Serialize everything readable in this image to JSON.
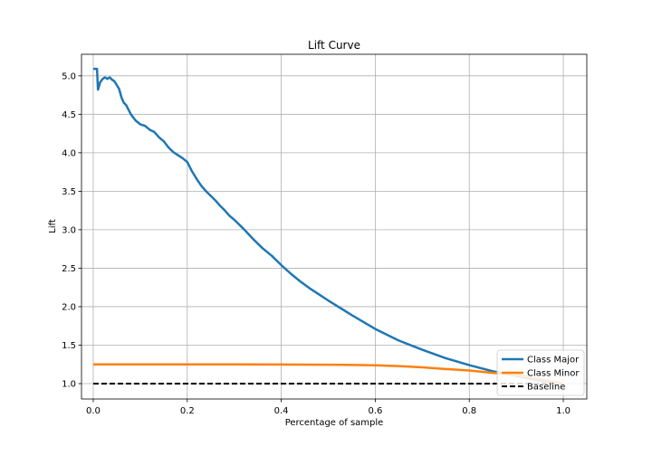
{
  "chart_data": {
    "type": "line",
    "title": "Lift Curve",
    "xlabel": "Percentage of sample",
    "ylabel": "Lift",
    "xlim": [
      -0.025,
      1.05
    ],
    "ylim": [
      0.8,
      5.28
    ],
    "xticks": [
      0.0,
      0.2,
      0.4,
      0.6,
      0.8,
      1.0
    ],
    "xtick_labels": [
      "0.0",
      "0.2",
      "0.4",
      "0.6",
      "0.8",
      "1.0"
    ],
    "yticks": [
      1.0,
      1.5,
      2.0,
      2.5,
      3.0,
      3.5,
      4.0,
      4.5,
      5.0
    ],
    "ytick_labels": [
      "1.0",
      "1.5",
      "2.0",
      "2.5",
      "3.0",
      "3.5",
      "4.0",
      "4.5",
      "5.0"
    ],
    "grid": true,
    "legend_position": "lower-right",
    "series": [
      {
        "name": "Class Major",
        "color": "#1f77b4",
        "style": "solid",
        "x": [
          0.0,
          0.008,
          0.01,
          0.015,
          0.02,
          0.025,
          0.03,
          0.035,
          0.04,
          0.045,
          0.05,
          0.055,
          0.06,
          0.065,
          0.07,
          0.08,
          0.09,
          0.1,
          0.11,
          0.12,
          0.13,
          0.14,
          0.15,
          0.16,
          0.17,
          0.18,
          0.19,
          0.2,
          0.21,
          0.22,
          0.23,
          0.24,
          0.25,
          0.26,
          0.27,
          0.28,
          0.29,
          0.3,
          0.32,
          0.34,
          0.36,
          0.38,
          0.4,
          0.42,
          0.44,
          0.46,
          0.48,
          0.5,
          0.55,
          0.6,
          0.65,
          0.7,
          0.75,
          0.8,
          0.85,
          0.9,
          0.95,
          1.0
        ],
        "y": [
          5.09,
          5.09,
          4.82,
          4.92,
          4.96,
          4.98,
          4.96,
          4.98,
          4.95,
          4.93,
          4.88,
          4.83,
          4.72,
          4.65,
          4.62,
          4.5,
          4.42,
          4.37,
          4.35,
          4.3,
          4.27,
          4.2,
          4.15,
          4.07,
          4.01,
          3.97,
          3.93,
          3.88,
          3.76,
          3.66,
          3.57,
          3.5,
          3.44,
          3.38,
          3.31,
          3.25,
          3.18,
          3.13,
          3.01,
          2.88,
          2.76,
          2.66,
          2.54,
          2.43,
          2.33,
          2.24,
          2.16,
          2.08,
          1.89,
          1.71,
          1.56,
          1.44,
          1.33,
          1.24,
          1.16,
          1.1,
          1.04,
          1.0
        ]
      },
      {
        "name": "Class Minor",
        "color": "#ff7f0e",
        "style": "solid",
        "x": [
          0.0,
          0.1,
          0.2,
          0.3,
          0.4,
          0.5,
          0.55,
          0.6,
          0.65,
          0.7,
          0.75,
          0.8,
          0.85,
          0.9,
          0.95,
          1.0
        ],
        "y": [
          1.25,
          1.25,
          1.25,
          1.25,
          1.248,
          1.245,
          1.243,
          1.238,
          1.228,
          1.212,
          1.19,
          1.17,
          1.14,
          1.11,
          1.06,
          1.0
        ]
      },
      {
        "name": "Baseline",
        "color": "#000000",
        "style": "dashed",
        "x": [
          0.0,
          1.0
        ],
        "y": [
          1.0,
          1.0
        ]
      }
    ]
  }
}
